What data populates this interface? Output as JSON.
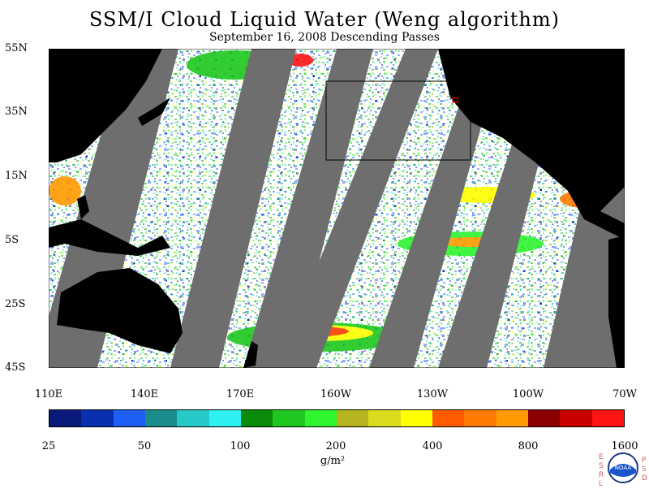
{
  "title": "SSM/I Cloud Liquid Water (Weng algorithm)",
  "subtitle": "September 16, 2008  Descending Passes",
  "lat_labels": [
    "55N",
    "35N",
    "15N",
    "5S",
    "25S",
    "45S"
  ],
  "lon_labels": [
    "110E",
    "140E",
    "170E",
    "160W",
    "130W",
    "100W",
    "70W"
  ],
  "colorbar": {
    "labels": [
      "25",
      "50",
      "100",
      "200",
      "400",
      "800",
      "1600"
    ],
    "colors": [
      "#0a1a7a",
      "#0830b0",
      "#1f5ef5",
      "#1a8c8c",
      "#26c8c8",
      "#2ff0f0",
      "#0a8c0a",
      "#1ec81e",
      "#2ef52e",
      "#b4b41e",
      "#dcdc1e",
      "#ffff00",
      "#ff5a00",
      "#ff7a00",
      "#ff9a00",
      "#8c0000",
      "#c80000",
      "#ff1414"
    ],
    "units": "g/m²"
  },
  "logo": {
    "left_letters": "ESRL",
    "right_letters": "PSD",
    "badge_text": "NOAA"
  }
}
